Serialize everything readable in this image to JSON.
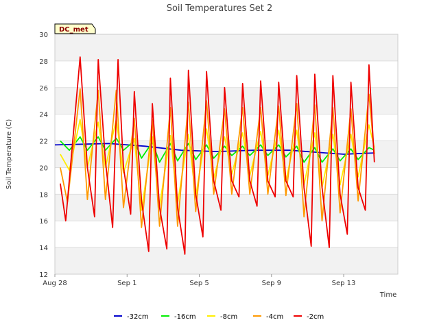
{
  "chart_data": {
    "type": "line",
    "title": "Soil Temperatures Set 2",
    "xlabel": "Time",
    "ylabel": "Soil Temperature (C)",
    "site_tag": "DC_met",
    "xlim": [
      "Aug 28",
      "Sep 16"
    ],
    "xticks": [
      "Aug 28",
      "Sep 1",
      "Sep 5",
      "Sep 9",
      "Sep 13"
    ],
    "ylim": [
      12,
      30
    ],
    "yticks": [
      12,
      14,
      16,
      18,
      20,
      22,
      24,
      26,
      28,
      30
    ],
    "grid": "horizontal alternating bands",
    "legend_position": "bottom",
    "series": [
      {
        "name": "-32cm",
        "color": "#0000cc",
        "points": [
          [
            "Aug 28",
            21.7
          ],
          [
            "Aug 31",
            21.8
          ],
          [
            "Sep 2",
            21.6
          ],
          [
            "Sep 4",
            21.3
          ],
          [
            "Sep 6",
            21.2
          ],
          [
            "Sep 8",
            21.3
          ],
          [
            "Sep 10",
            21.3
          ],
          [
            "Sep 12",
            21.1
          ],
          [
            "Sep 13",
            21.0
          ],
          [
            "Sep 14.7",
            21.1
          ]
        ]
      },
      {
        "name": "-16cm",
        "color": "#00ee00",
        "points": [
          [
            "Aug 28.3",
            22.0
          ],
          [
            "Aug 28.8",
            21.3
          ],
          [
            "Aug 29.4",
            22.3
          ],
          [
            "Aug 29.8",
            21.3
          ],
          [
            "Aug 30.4",
            22.3
          ],
          [
            "Aug 30.8",
            21.3
          ],
          [
            "Aug 31.4",
            22.2
          ],
          [
            "Aug 31.8",
            21.3
          ],
          [
            "Sep 1.4",
            22.0
          ],
          [
            "Sep 1.8",
            20.7
          ],
          [
            "Sep 2.4",
            21.9
          ],
          [
            "Sep 2.8",
            20.4
          ],
          [
            "Sep 3.4",
            21.8
          ],
          [
            "Sep 3.8",
            20.5
          ],
          [
            "Sep 4.4",
            21.8
          ],
          [
            "Sep 4.8",
            20.6
          ],
          [
            "Sep 5.4",
            21.7
          ],
          [
            "Sep 5.8",
            20.7
          ],
          [
            "Sep 6.4",
            21.6
          ],
          [
            "Sep 6.8",
            20.9
          ],
          [
            "Sep 7.4",
            21.6
          ],
          [
            "Sep 7.8",
            20.9
          ],
          [
            "Sep 8.4",
            21.7
          ],
          [
            "Sep 8.8",
            20.9
          ],
          [
            "Sep 9.4",
            21.7
          ],
          [
            "Sep 9.8",
            20.8
          ],
          [
            "Sep 10.4",
            21.6
          ],
          [
            "Sep 10.8",
            20.4
          ],
          [
            "Sep 11.4",
            21.5
          ],
          [
            "Sep 11.8",
            20.4
          ],
          [
            "Sep 12.4",
            21.4
          ],
          [
            "Sep 12.8",
            20.5
          ],
          [
            "Sep 13.4",
            21.4
          ],
          [
            "Sep 13.8",
            20.6
          ],
          [
            "Sep 14.4",
            21.5
          ],
          [
            "Sep 14.7",
            21.3
          ]
        ]
      },
      {
        "name": "-8cm",
        "color": "#ffee00",
        "points": [
          [
            "Aug 28.3",
            21.0
          ],
          [
            "Aug 28.8",
            19.8
          ],
          [
            "Aug 29.4",
            23.6
          ],
          [
            "Aug 29.8",
            20.0
          ],
          [
            "Aug 30.4",
            23.4
          ],
          [
            "Aug 30.8",
            20.0
          ],
          [
            "Aug 31.4",
            23.6
          ],
          [
            "Aug 31.8",
            19.6
          ],
          [
            "Sep 1.4",
            22.2
          ],
          [
            "Sep 1.8",
            16.8
          ],
          [
            "Sep 2.4",
            22.3
          ],
          [
            "Sep 2.8",
            17.1
          ],
          [
            "Sep 3.4",
            22.4
          ],
          [
            "Sep 3.8",
            17.3
          ],
          [
            "Sep 4.4",
            22.5
          ],
          [
            "Sep 4.8",
            17.8
          ],
          [
            "Sep 5.4",
            22.9
          ],
          [
            "Sep 5.8",
            19.2
          ],
          [
            "Sep 6.4",
            22.3
          ],
          [
            "Sep 6.8",
            19.5
          ],
          [
            "Sep 7.4",
            22.6
          ],
          [
            "Sep 7.8",
            19.4
          ],
          [
            "Sep 8.4",
            22.7
          ],
          [
            "Sep 8.8",
            19.4
          ],
          [
            "Sep 9.4",
            22.8
          ],
          [
            "Sep 9.8",
            19.0
          ],
          [
            "Sep 10.4",
            22.8
          ],
          [
            "Sep 10.8",
            18.7
          ],
          [
            "Sep 11.4",
            22.6
          ],
          [
            "Sep 11.8",
            18.5
          ],
          [
            "Sep 12.4",
            22.5
          ],
          [
            "Sep 12.8",
            18.7
          ],
          [
            "Sep 13.4",
            22.5
          ],
          [
            "Sep 13.8",
            19.3
          ],
          [
            "Sep 14.4",
            23.2
          ],
          [
            "Sep 14.7",
            21.5
          ]
        ]
      },
      {
        "name": "-4cm",
        "color": "#ff9900",
        "points": [
          [
            "Aug 28.3",
            20.0
          ],
          [
            "Aug 28.7",
            17.4
          ],
          [
            "Aug 29.4",
            25.9
          ],
          [
            "Aug 29.8",
            17.6
          ],
          [
            "Aug 30.4",
            25.8
          ],
          [
            "Aug 30.8",
            17.6
          ],
          [
            "Aug 31.4",
            25.8
          ],
          [
            "Aug 31.8",
            17.0
          ],
          [
            "Sep 1.4",
            23.7
          ],
          [
            "Sep 1.8",
            15.5
          ],
          [
            "Sep 2.4",
            23.6
          ],
          [
            "Sep 2.8",
            15.6
          ],
          [
            "Sep 3.4",
            24.5
          ],
          [
            "Sep 3.8",
            15.6
          ],
          [
            "Sep 4.4",
            24.9
          ],
          [
            "Sep 4.8",
            16.7
          ],
          [
            "Sep 5.4",
            25.0
          ],
          [
            "Sep 5.8",
            18.0
          ],
          [
            "Sep 6.4",
            24.4
          ],
          [
            "Sep 6.8",
            18.0
          ],
          [
            "Sep 7.4",
            24.5
          ],
          [
            "Sep 7.8",
            18.0
          ],
          [
            "Sep 8.4",
            24.5
          ],
          [
            "Sep 8.8",
            18.0
          ],
          [
            "Sep 9.4",
            24.6
          ],
          [
            "Sep 9.8",
            17.9
          ],
          [
            "Sep 10.4",
            24.8
          ],
          [
            "Sep 10.8",
            16.3
          ],
          [
            "Sep 11.4",
            24.7
          ],
          [
            "Sep 11.8",
            16.0
          ],
          [
            "Sep 12.4",
            24.5
          ],
          [
            "Sep 12.8",
            16.6
          ],
          [
            "Sep 13.4",
            24.4
          ],
          [
            "Sep 13.8",
            17.5
          ],
          [
            "Sep 14.4",
            25.5
          ],
          [
            "Sep 14.7",
            21.0
          ]
        ]
      },
      {
        "name": "-2cm",
        "color": "#ee0000",
        "points": [
          [
            "Aug 28.3",
            18.8
          ],
          [
            "Aug 28.6",
            16.0
          ],
          [
            "Aug 29.4",
            28.3
          ],
          [
            "Aug 29.8",
            20.0
          ],
          [
            "Aug 30.2",
            16.3
          ],
          [
            "Aug 30.4",
            28.1
          ],
          [
            "Aug 30.8",
            20.5
          ],
          [
            "Aug 31.2",
            15.5
          ],
          [
            "Aug 31.5",
            28.1
          ],
          [
            "Aug 31.8",
            20.0
          ],
          [
            "Sep 1.2",
            16.5
          ],
          [
            "Sep 1.4",
            25.7
          ],
          [
            "Sep 1.8",
            17.5
          ],
          [
            "Sep 2.2",
            13.7
          ],
          [
            "Sep 2.4",
            24.8
          ],
          [
            "Sep 2.8",
            17.0
          ],
          [
            "Sep 3.2",
            13.9
          ],
          [
            "Sep 3.4",
            26.7
          ],
          [
            "Sep 3.8",
            17.0
          ],
          [
            "Sep 4.2",
            13.5
          ],
          [
            "Sep 4.4",
            27.3
          ],
          [
            "Sep 4.8",
            18.0
          ],
          [
            "Sep 5.2",
            14.8
          ],
          [
            "Sep 5.4",
            27.2
          ],
          [
            "Sep 5.8",
            19.0
          ],
          [
            "Sep 6.2",
            16.8
          ],
          [
            "Sep 6.4",
            26.0
          ],
          [
            "Sep 6.8",
            19.0
          ],
          [
            "Sep 7.2",
            17.8
          ],
          [
            "Sep 7.4",
            26.3
          ],
          [
            "Sep 7.8",
            19.0
          ],
          [
            "Sep 8.2",
            17.1
          ],
          [
            "Sep 8.4",
            26.5
          ],
          [
            "Sep 8.8",
            19.0
          ],
          [
            "Sep 9.2",
            17.8
          ],
          [
            "Sep 9.4",
            26.4
          ],
          [
            "Sep 9.8",
            19.0
          ],
          [
            "Sep 10.2",
            17.8
          ],
          [
            "Sep 10.4",
            26.9
          ],
          [
            "Sep 10.8",
            18.5
          ],
          [
            "Sep 11.2",
            14.1
          ],
          [
            "Sep 11.4",
            27.0
          ],
          [
            "Sep 11.8",
            18.5
          ],
          [
            "Sep 12.2",
            14.0
          ],
          [
            "Sep 12.4",
            26.9
          ],
          [
            "Sep 12.8",
            18.0
          ],
          [
            "Sep 13.2",
            15.0
          ],
          [
            "Sep 13.4",
            26.4
          ],
          [
            "Sep 13.8",
            18.5
          ],
          [
            "Sep 14.2",
            16.8
          ],
          [
            "Sep 14.4",
            27.7
          ],
          [
            "Sep 14.7",
            20.4
          ]
        ]
      }
    ]
  }
}
